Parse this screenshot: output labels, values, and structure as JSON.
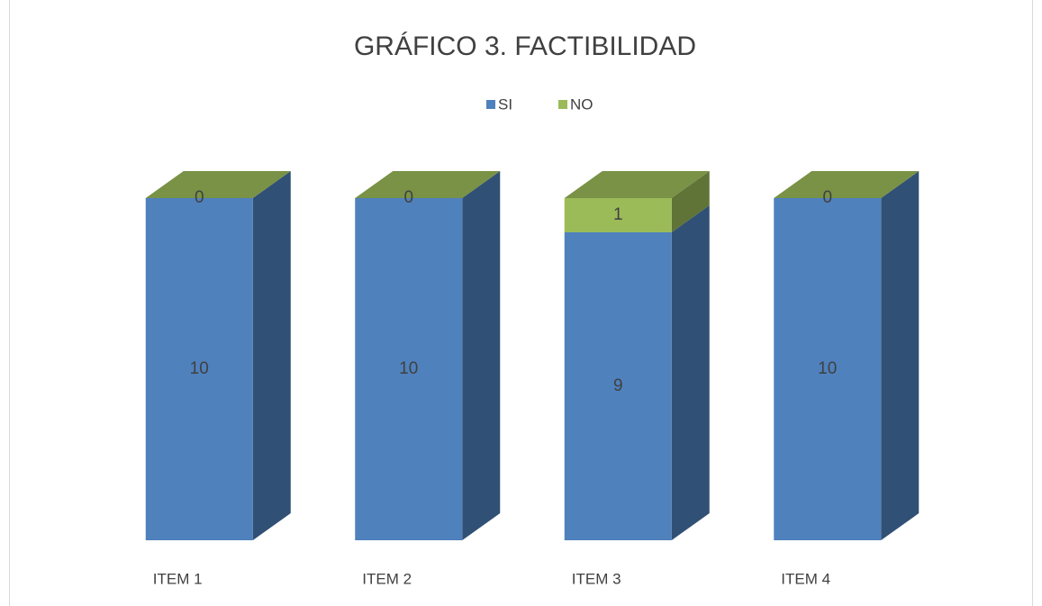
{
  "chart_data": {
    "type": "bar3d_stacked",
    "title": "GRÁFICO 3. FACTIBILIDAD",
    "categories": [
      "ITEM 1",
      "ITEM 2",
      "ITEM 3",
      "ITEM 4"
    ],
    "series": [
      {
        "name": "SI",
        "color": "#4f81bd",
        "values": [
          10,
          10,
          9,
          10
        ]
      },
      {
        "name": "NO",
        "color": "#9bbb59",
        "values": [
          0,
          0,
          1,
          0
        ]
      }
    ],
    "legend": "top"
  }
}
